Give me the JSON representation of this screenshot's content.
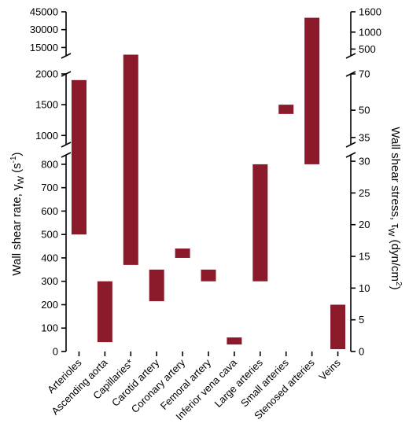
{
  "chart_data": {
    "type": "bar",
    "subtype": "floating-range",
    "bar_color": "#8b1a2b",
    "categories": [
      "Arterioles",
      "Ascending aorta",
      "Capillaries*",
      "Carotid artery",
      "Coronary artery",
      "Femoral artery",
      "Inferior vena cava",
      "Large arteries",
      "Small arteries",
      "Stenosed arteries",
      "Veins"
    ],
    "series": [
      {
        "values": [
          [
            500,
            1900
          ],
          [
            40,
            300
          ],
          [
            370,
            9000
          ],
          [
            215,
            350
          ],
          [
            400,
            440
          ],
          [
            300,
            350
          ],
          [
            30,
            60
          ],
          [
            300,
            800
          ],
          [
            1350,
            1500
          ],
          [
            800,
            40000
          ],
          [
            10,
            200
          ]
        ]
      }
    ],
    "left_axis": {
      "label": "Wall shear rate, γW (s⁻¹)",
      "label_main": "Wall shear rate, γ",
      "label_sub": "W",
      "label_units": " (s",
      "label_sup": "-1",
      "label_close": ")",
      "segments": [
        {
          "range": [
            0,
            840
          ],
          "ticks": [
            0,
            100,
            200,
            300,
            400,
            500,
            600,
            700,
            800
          ]
        },
        {
          "range": [
            850,
            2000
          ],
          "ticks": [
            1000,
            1500,
            2000
          ]
        },
        {
          "range": [
            8000,
            45000
          ],
          "ticks": [
            15000,
            30000,
            45000
          ]
        }
      ]
    },
    "right_axis": {
      "label": "Wall shear stress, τW (dyn/cm²)",
      "label_main": "Wall shear stress, τ",
      "label_sub": "W",
      "label_units": " (dyn/cm",
      "label_sup": "2",
      "label_close": ")",
      "segments": [
        {
          "range": [
            0,
            31
          ],
          "ticks": [
            0,
            5,
            10,
            15,
            20,
            25,
            30
          ]
        },
        {
          "range": [
            31,
            70
          ],
          "ticks": [
            35,
            50,
            70
          ]
        },
        {
          "range": [
            300,
            1600
          ],
          "ticks": [
            500,
            1000,
            1600
          ]
        }
      ]
    }
  }
}
